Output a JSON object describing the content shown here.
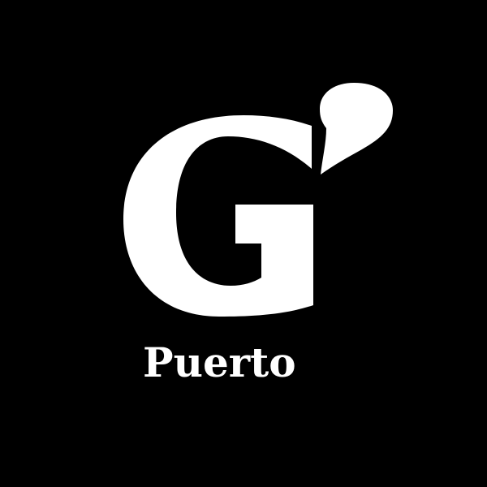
{
  "brand": {
    "name": "Puerto",
    "logo_letter": "G",
    "colors": {
      "background": "#000000",
      "foreground": "#ffffff"
    }
  }
}
